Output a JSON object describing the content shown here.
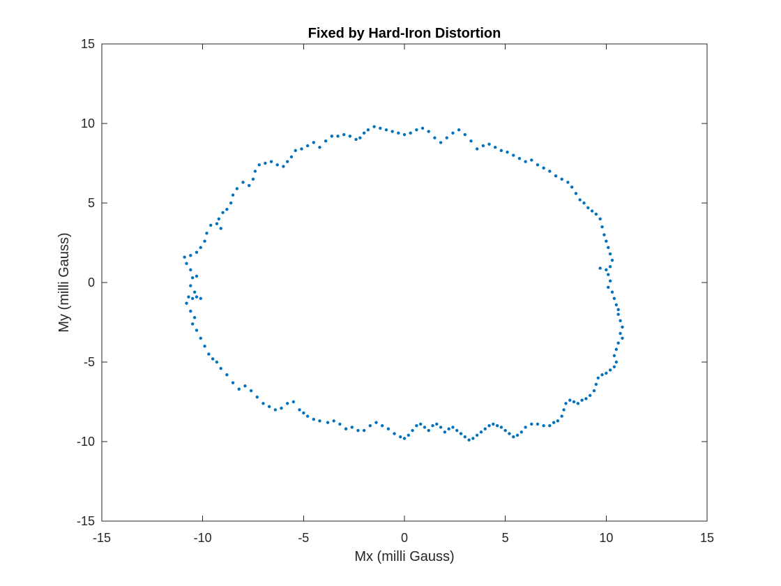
{
  "chart_data": {
    "type": "scatter",
    "title": "Fixed by Hard-Iron Distortion",
    "xlabel": "Mx (milli Gauss)",
    "ylabel": "My (milli Gauss)",
    "xlim": [
      -15,
      15
    ],
    "ylim": [
      -15,
      15
    ],
    "xticks": [
      -15,
      -10,
      -5,
      0,
      5,
      10,
      15
    ],
    "yticks": [
      -15,
      -10,
      -5,
      0,
      5,
      10,
      15
    ],
    "xtick_labels": [
      "-15",
      "-10",
      "-5",
      "0",
      "5",
      "10",
      "15"
    ],
    "ytick_labels": [
      "-15",
      "-10",
      "-5",
      "0",
      "5",
      "10",
      "15"
    ],
    "grid": false,
    "legend": "none",
    "marker_color": "#0072BD",
    "series": [
      {
        "points": [
          [
            10.6,
            -2.0
          ],
          [
            10.7,
            -2.4
          ],
          [
            10.8,
            -2.8
          ],
          [
            10.7,
            -3.2
          ],
          [
            10.8,
            -3.5
          ],
          [
            10.6,
            -3.8
          ],
          [
            10.5,
            -4.2
          ],
          [
            10.4,
            -4.6
          ],
          [
            10.5,
            -5.0
          ],
          [
            10.4,
            -5.3
          ],
          [
            10.2,
            -5.5
          ],
          [
            10.0,
            -5.7
          ],
          [
            9.8,
            -5.8
          ],
          [
            9.6,
            -6.0
          ],
          [
            9.5,
            -6.4
          ],
          [
            9.4,
            -6.8
          ],
          [
            9.2,
            -7.1
          ],
          [
            9.0,
            -7.3
          ],
          [
            8.8,
            -7.4
          ],
          [
            8.6,
            -7.6
          ],
          [
            8.4,
            -7.5
          ],
          [
            8.2,
            -7.4
          ],
          [
            8.0,
            -7.6
          ],
          [
            7.9,
            -8.0
          ],
          [
            7.8,
            -8.4
          ],
          [
            7.6,
            -8.7
          ],
          [
            7.4,
            -8.8
          ],
          [
            7.2,
            -9.0
          ],
          [
            6.9,
            -9.0
          ],
          [
            6.6,
            -8.9
          ],
          [
            6.3,
            -8.9
          ],
          [
            6.0,
            -9.1
          ],
          [
            5.8,
            -9.4
          ],
          [
            5.6,
            -9.6
          ],
          [
            5.4,
            -9.7
          ],
          [
            5.2,
            -9.5
          ],
          [
            5.0,
            -9.3
          ],
          [
            4.8,
            -9.1
          ],
          [
            4.6,
            -9.0
          ],
          [
            4.4,
            -8.9
          ],
          [
            4.2,
            -9.0
          ],
          [
            4.0,
            -9.2
          ],
          [
            3.8,
            -9.4
          ],
          [
            3.6,
            -9.6
          ],
          [
            3.4,
            -9.8
          ],
          [
            3.2,
            -9.9
          ],
          [
            3.0,
            -9.7
          ],
          [
            2.8,
            -9.5
          ],
          [
            2.6,
            -9.3
          ],
          [
            2.4,
            -9.1
          ],
          [
            2.2,
            -9.2
          ],
          [
            2.0,
            -9.4
          ],
          [
            1.8,
            -9.1
          ],
          [
            1.6,
            -8.9
          ],
          [
            1.4,
            -9.0
          ],
          [
            1.2,
            -9.3
          ],
          [
            1.0,
            -9.1
          ],
          [
            0.8,
            -8.9
          ],
          [
            0.6,
            -9.0
          ],
          [
            0.4,
            -9.3
          ],
          [
            0.2,
            -9.6
          ],
          [
            0.0,
            -9.8
          ],
          [
            -0.2,
            -9.7
          ],
          [
            -0.5,
            -9.5
          ],
          [
            -0.8,
            -9.2
          ],
          [
            -1.1,
            -9.0
          ],
          [
            -1.4,
            -8.8
          ],
          [
            -1.7,
            -9.0
          ],
          [
            -2.0,
            -9.3
          ],
          [
            -2.3,
            -9.3
          ],
          [
            -2.6,
            -9.1
          ],
          [
            -2.9,
            -9.2
          ],
          [
            -3.2,
            -8.9
          ],
          [
            -3.5,
            -8.7
          ],
          [
            -3.8,
            -8.8
          ],
          [
            -4.2,
            -8.7
          ],
          [
            -4.5,
            -8.6
          ],
          [
            -4.8,
            -8.4
          ],
          [
            -5.0,
            -8.2
          ],
          [
            -5.2,
            -8.0
          ],
          [
            -5.5,
            -7.5
          ],
          [
            -5.8,
            -7.6
          ],
          [
            -6.1,
            -7.9
          ],
          [
            -6.4,
            -8.0
          ],
          [
            -6.7,
            -7.8
          ],
          [
            -7.0,
            -7.6
          ],
          [
            -7.3,
            -7.2
          ],
          [
            -7.6,
            -6.8
          ],
          [
            -7.9,
            -6.5
          ],
          [
            -8.2,
            -6.7
          ],
          [
            -8.5,
            -6.3
          ],
          [
            -8.8,
            -5.8
          ],
          [
            -9.1,
            -5.4
          ],
          [
            -9.3,
            -5.0
          ],
          [
            -9.5,
            -4.8
          ],
          [
            -9.7,
            -4.5
          ],
          [
            -9.9,
            -4.0
          ],
          [
            -10.1,
            -3.5
          ],
          [
            -10.3,
            -3.0
          ],
          [
            -10.5,
            -2.6
          ],
          [
            -10.4,
            -2.2
          ],
          [
            -10.6,
            -1.8
          ],
          [
            -10.8,
            -1.3
          ],
          [
            -10.7,
            -0.9
          ],
          [
            -10.5,
            -1.0
          ],
          [
            -10.3,
            -0.9
          ],
          [
            -10.1,
            -1.0
          ],
          [
            -10.4,
            -0.6
          ],
          [
            -10.6,
            -0.2
          ],
          [
            -10.5,
            0.3
          ],
          [
            -10.3,
            0.4
          ],
          [
            -10.6,
            0.8
          ],
          [
            -10.8,
            1.2
          ],
          [
            -10.9,
            1.6
          ],
          [
            -10.6,
            1.7
          ],
          [
            -10.3,
            1.9
          ],
          [
            -10.1,
            2.2
          ],
          [
            -9.9,
            2.6
          ],
          [
            -9.8,
            3.1
          ],
          [
            -9.6,
            3.6
          ],
          [
            -9.3,
            3.7
          ],
          [
            -9.1,
            3.4
          ],
          [
            -9.2,
            4.0
          ],
          [
            -9.0,
            4.4
          ],
          [
            -8.8,
            4.6
          ],
          [
            -8.6,
            5.0
          ],
          [
            -8.5,
            5.5
          ],
          [
            -8.3,
            5.9
          ],
          [
            -8.0,
            6.3
          ],
          [
            -7.7,
            6.1
          ],
          [
            -7.5,
            6.5
          ],
          [
            -7.4,
            7.0
          ],
          [
            -7.2,
            7.4
          ],
          [
            -6.9,
            7.5
          ],
          [
            -6.6,
            7.6
          ],
          [
            -6.3,
            7.4
          ],
          [
            -6.0,
            7.3
          ],
          [
            -5.8,
            7.6
          ],
          [
            -5.6,
            7.9
          ],
          [
            -5.4,
            8.3
          ],
          [
            -5.1,
            8.4
          ],
          [
            -4.8,
            8.6
          ],
          [
            -4.5,
            8.8
          ],
          [
            -4.2,
            8.5
          ],
          [
            -3.9,
            8.9
          ],
          [
            -3.6,
            9.2
          ],
          [
            -3.3,
            9.2
          ],
          [
            -3.0,
            9.3
          ],
          [
            -2.7,
            9.2
          ],
          [
            -2.4,
            9.0
          ],
          [
            -2.2,
            9.1
          ],
          [
            -2.0,
            9.4
          ],
          [
            -1.8,
            9.6
          ],
          [
            -1.5,
            9.8
          ],
          [
            -1.2,
            9.7
          ],
          [
            -0.9,
            9.6
          ],
          [
            -0.6,
            9.5
          ],
          [
            -0.3,
            9.4
          ],
          [
            0.0,
            9.3
          ],
          [
            0.3,
            9.4
          ],
          [
            0.6,
            9.6
          ],
          [
            0.9,
            9.7
          ],
          [
            1.2,
            9.5
          ],
          [
            1.5,
            9.1
          ],
          [
            1.8,
            8.8
          ],
          [
            2.1,
            9.1
          ],
          [
            2.4,
            9.4
          ],
          [
            2.7,
            9.6
          ],
          [
            3.0,
            9.3
          ],
          [
            3.3,
            8.9
          ],
          [
            3.6,
            8.4
          ],
          [
            3.9,
            8.6
          ],
          [
            4.2,
            8.7
          ],
          [
            4.5,
            8.5
          ],
          [
            4.8,
            8.3
          ],
          [
            5.1,
            8.2
          ],
          [
            5.4,
            8.0
          ],
          [
            5.7,
            7.8
          ],
          [
            6.0,
            7.6
          ],
          [
            6.3,
            7.7
          ],
          [
            6.6,
            7.4
          ],
          [
            6.9,
            7.2
          ],
          [
            7.2,
            7.0
          ],
          [
            7.5,
            6.7
          ],
          [
            7.8,
            6.5
          ],
          [
            8.1,
            6.3
          ],
          [
            8.3,
            6.0
          ],
          [
            8.5,
            5.6
          ],
          [
            8.7,
            5.2
          ],
          [
            8.9,
            5.0
          ],
          [
            9.1,
            4.7
          ],
          [
            9.3,
            4.5
          ],
          [
            9.5,
            4.3
          ],
          [
            9.7,
            4.0
          ],
          [
            9.8,
            3.5
          ],
          [
            9.9,
            3.0
          ],
          [
            10.0,
            2.6
          ],
          [
            10.1,
            2.2
          ],
          [
            10.2,
            1.8
          ],
          [
            10.3,
            1.4
          ],
          [
            10.2,
            1.0
          ],
          [
            10.0,
            0.8
          ],
          [
            9.7,
            0.9
          ],
          [
            10.1,
            0.5
          ],
          [
            10.2,
            0.1
          ],
          [
            10.1,
            -0.3
          ],
          [
            10.3,
            -0.6
          ],
          [
            10.4,
            -1.0
          ],
          [
            10.5,
            -1.4
          ],
          [
            10.6,
            -1.7
          ]
        ]
      }
    ]
  }
}
